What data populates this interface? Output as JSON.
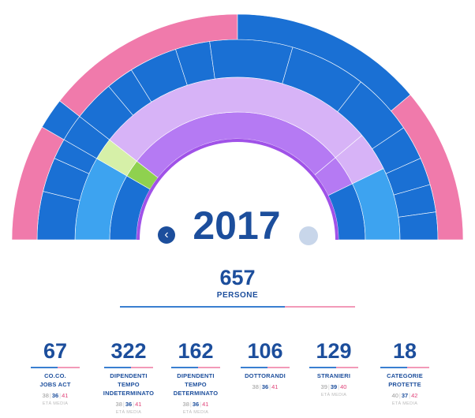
{
  "header": {
    "year": "2017"
  },
  "nav": {
    "prev_icon": "chevron-left-icon",
    "next_icon": "circle-icon",
    "prev_glyph": "‹"
  },
  "total": {
    "value": "657",
    "label": "PERSONE"
  },
  "colors": {
    "dark_blue": "#1c4e9c",
    "blue": "#0a6fd3",
    "light_blue": "#3da3f0",
    "purple": "#b57af3",
    "lavender": "#d7b3f7",
    "green": "#8fd14f",
    "light_green": "#d6f0a8",
    "pink": "#f07aab"
  },
  "categories": [
    {
      "value": "67",
      "label_lines": [
        "CO.CO.",
        "JOBS ACT"
      ],
      "ages": [
        "38",
        "36",
        "41"
      ],
      "ages_label": "ETÀ MEDIA"
    },
    {
      "value": "322",
      "label_lines": [
        "DIPENDENTI",
        "TEMPO",
        "INDETERMINATO"
      ],
      "ages": [
        "38",
        "36",
        "41"
      ],
      "ages_label": "ETÀ MEDIA"
    },
    {
      "value": "162",
      "label_lines": [
        "DIPENDENTI",
        "TEMPO",
        "DETERMINATO"
      ],
      "ages": [
        "38",
        "36",
        "41"
      ],
      "ages_label": "ETÀ MEDIA"
    },
    {
      "value": "106",
      "label_lines": [
        "DOTTORANDI"
      ],
      "ages": [
        "38",
        "36",
        "41"
      ],
      "ages_label": ""
    },
    {
      "value": "129",
      "label_lines": [
        "STRANIERI"
      ],
      "ages": [
        "39",
        "39",
        "40"
      ],
      "ages_label": "ETÀ MEDIA"
    },
    {
      "value": "18",
      "label_lines": [
        "CATEGORIE",
        "PROTETTE"
      ],
      "ages": [
        "40",
        "37",
        "42"
      ],
      "ages_label": "ETÀ MEDIA"
    }
  ],
  "chart_data": {
    "type": "sunburst",
    "title": "",
    "rings": [
      {
        "name": "inner",
        "segments": [
          {
            "label": "",
            "color": "#1a70d4",
            "span": 30
          },
          {
            "label": "",
            "color": "#8fd14f",
            "span": 8
          },
          {
            "label": "",
            "color": "#b57af3",
            "span": 102
          },
          {
            "label": "",
            "color": "#b57af3",
            "span": 14
          },
          {
            "label": "",
            "color": "#1a70d4",
            "span": 26
          }
        ]
      },
      {
        "name": "middle",
        "segments": [
          {
            "label": "",
            "color": "#3da3f0",
            "span": 30
          },
          {
            "label": "",
            "color": "#d6f0a8",
            "span": 8
          },
          {
            "label": "",
            "color": "#d7b3f7",
            "span": 102
          },
          {
            "label": "",
            "color": "#d7b3f7",
            "span": 14
          },
          {
            "label": "",
            "color": "#3da3f0",
            "span": 26
          }
        ]
      },
      {
        "name": "outer",
        "segments": [
          {
            "label": "",
            "color": "#1a70d4",
            "span": 14
          },
          {
            "label": "",
            "color": "#1a70d4",
            "span": 10
          },
          {
            "label": "",
            "color": "#1a70d4",
            "span": 6
          },
          {
            "label": "",
            "color": "#1a70d4",
            "span": 8
          },
          {
            "label": "",
            "color": "#1a70d4",
            "span": 12
          },
          {
            "label": "",
            "color": "#1a70d4",
            "span": 8
          },
          {
            "label": "",
            "color": "#1a70d4",
            "span": 14
          },
          {
            "label": "",
            "color": "#1a70d4",
            "span": 10
          },
          {
            "label": "",
            "color": "#1a70d4",
            "span": 24
          },
          {
            "label": "",
            "color": "#1a70d4",
            "span": 22
          },
          {
            "label": "",
            "color": "#1a70d4",
            "span": 18
          },
          {
            "label": "",
            "color": "#1a70d4",
            "span": 10
          },
          {
            "label": "",
            "color": "#1a70d4",
            "span": 8
          },
          {
            "label": "",
            "color": "#1a70d4",
            "span": 8
          },
          {
            "label": "",
            "color": "#1a70d4",
            "span": 8
          }
        ]
      },
      {
        "name": "rim",
        "segments": [
          {
            "label": "",
            "color": "#f07aab",
            "span": 30
          },
          {
            "label": "",
            "color": "#1a70d4",
            "span": 8
          },
          {
            "label": "",
            "color": "#f07aab",
            "span": 52
          },
          {
            "label": "",
            "color": "#1a70d4",
            "span": 50
          },
          {
            "label": "",
            "color": "#f07aab",
            "span": 40
          }
        ]
      }
    ]
  }
}
